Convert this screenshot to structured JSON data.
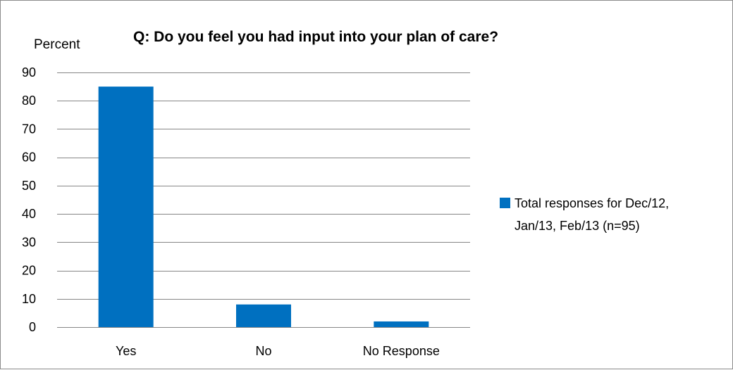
{
  "chart_data": {
    "type": "bar",
    "title": "Q:  Do you feel you had input into your plan of care?",
    "ylabel": "Percent",
    "xlabel": "",
    "categories": [
      "Yes",
      "No",
      "No Response"
    ],
    "series": [
      {
        "name": "Total responses for Dec/12, Jan/13, Feb/13 (n=95)",
        "legend_lines": [
          "Total responses for Dec/12,",
          "Jan/13, Feb/13 (n=95)"
        ],
        "values": [
          85,
          8,
          2
        ],
        "color": "#0070C0"
      }
    ],
    "ylim": [
      0,
      90
    ],
    "yticks": [
      0,
      10,
      20,
      30,
      40,
      50,
      60,
      70,
      80,
      90
    ],
    "grid": true,
    "legend_position": "right"
  }
}
